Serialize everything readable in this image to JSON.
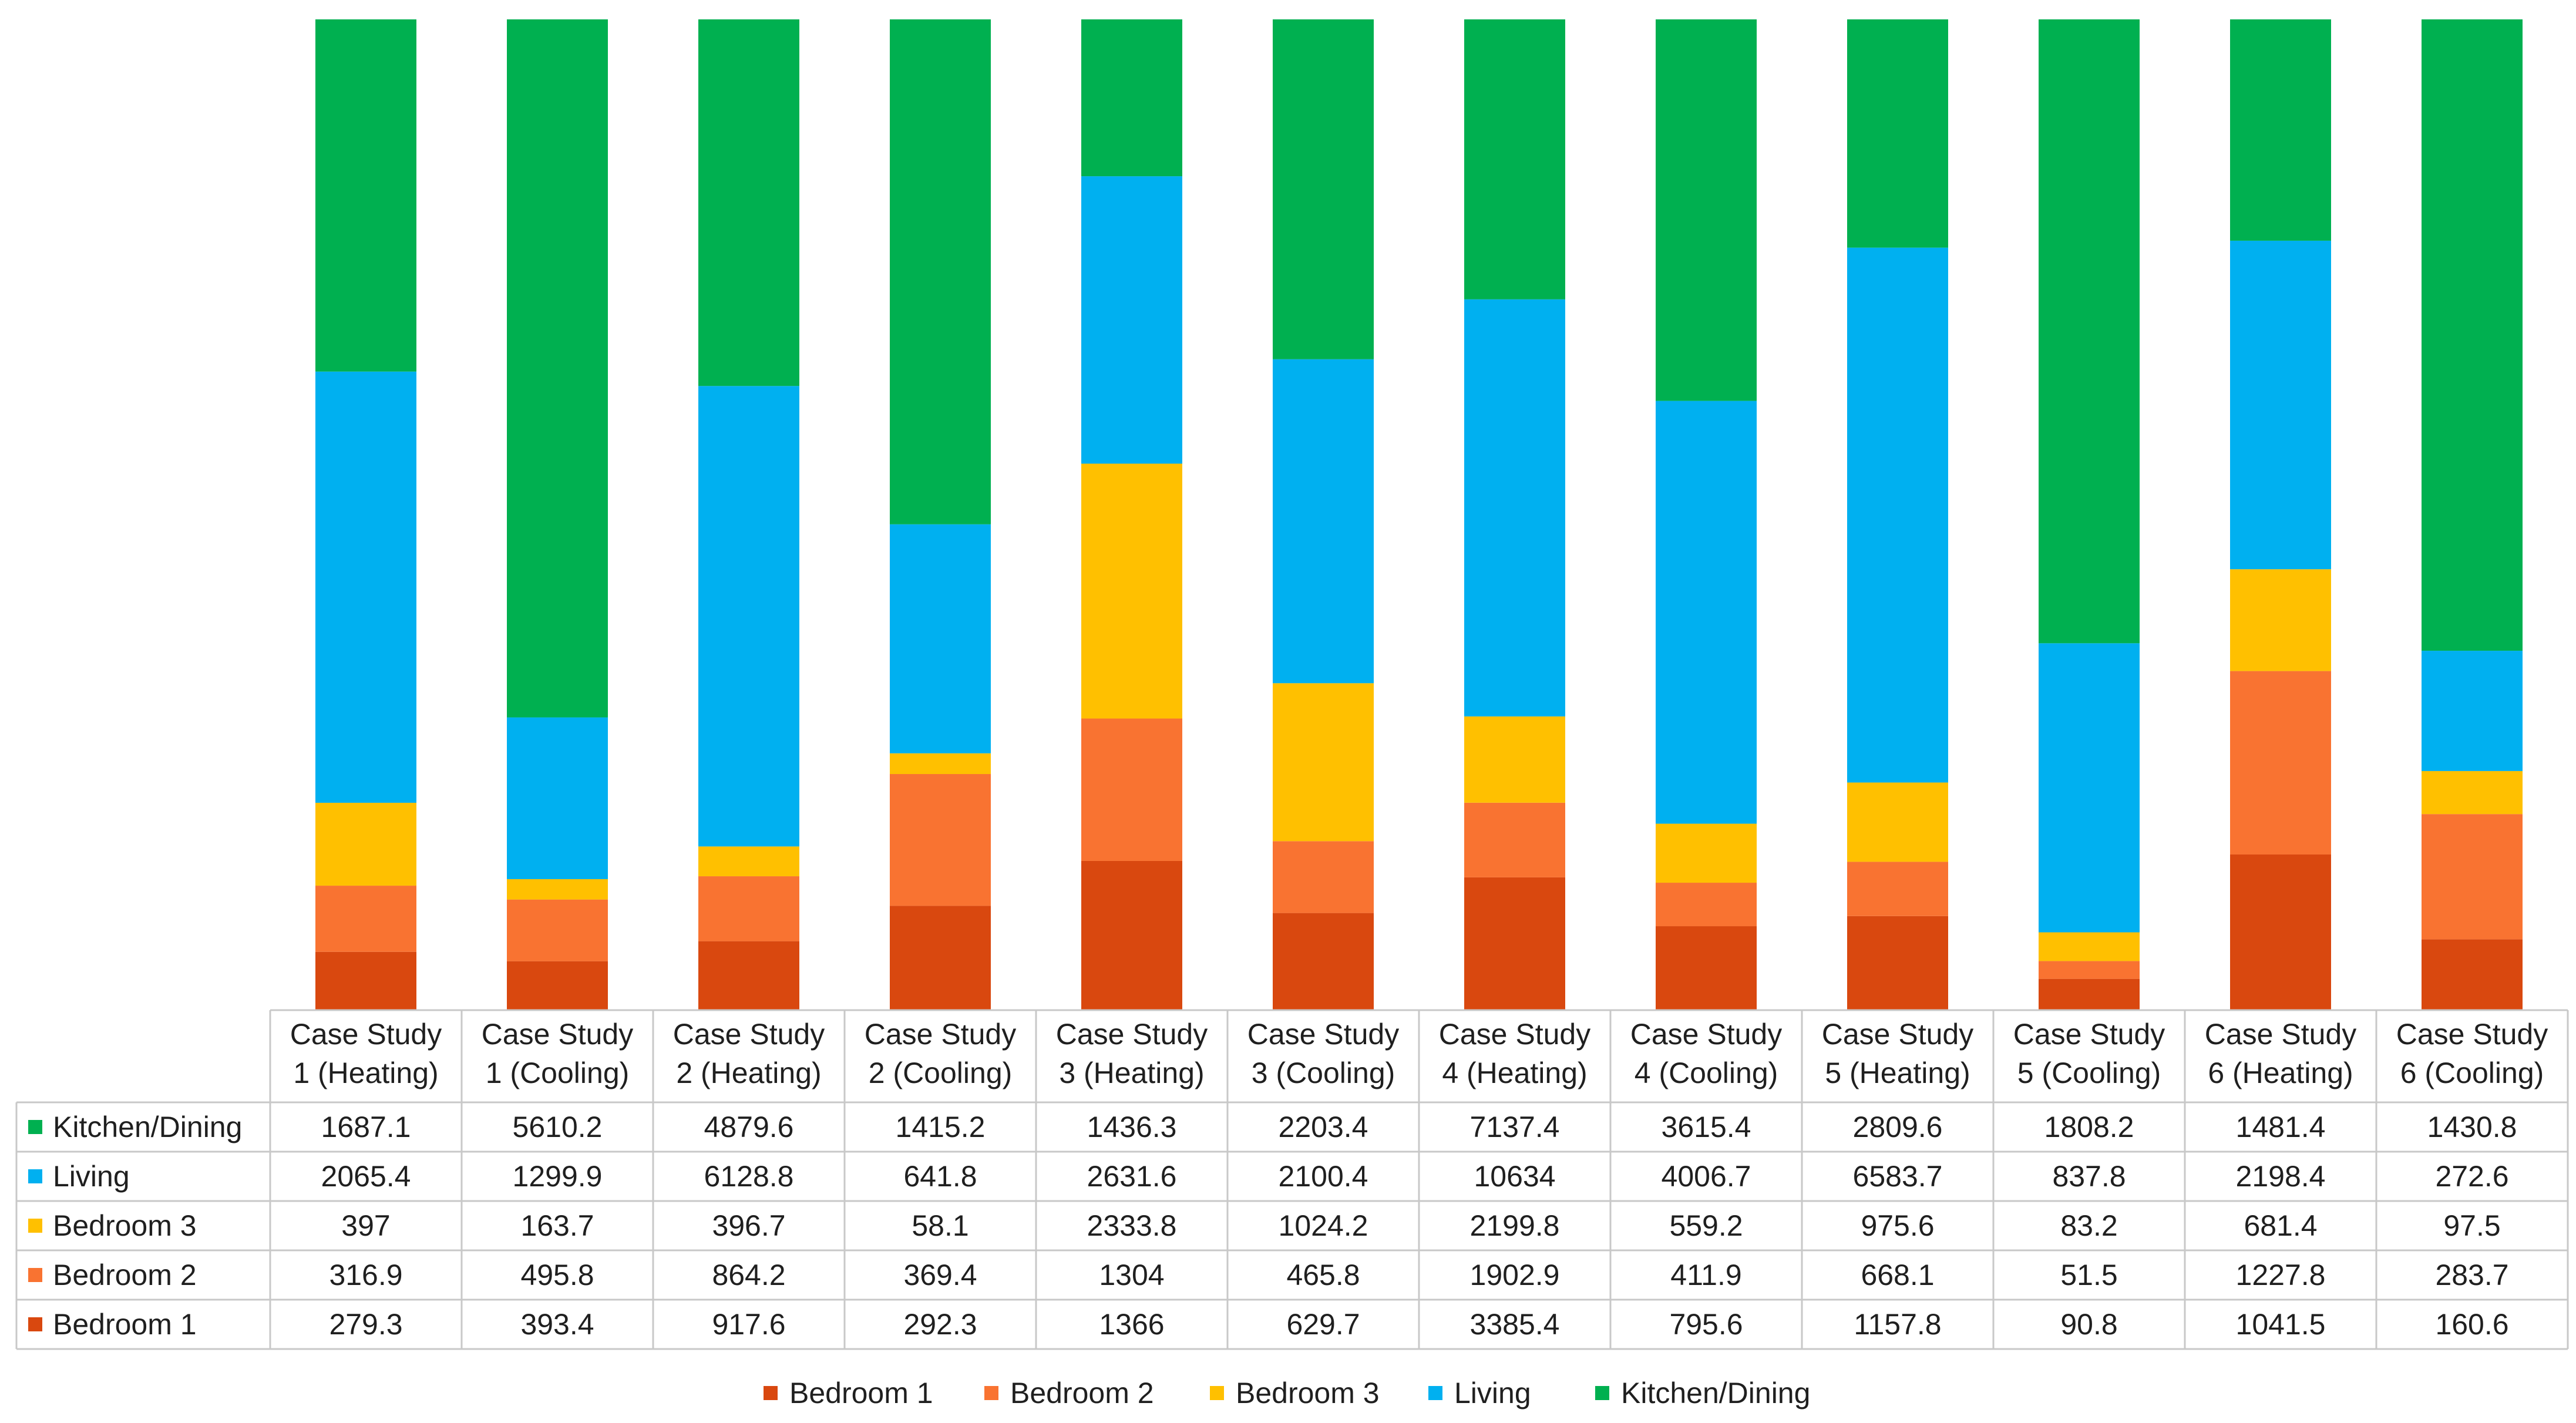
{
  "chart_data": {
    "type": "bar",
    "stacked": true,
    "normalized_100_percent": true,
    "title": "",
    "xlabel": "",
    "ylabel": "",
    "legend_position": "bottom",
    "grid": false,
    "has_data_table": true,
    "categories": [
      "Case Study 1 (Heating)",
      "Case Study 1 (Cooling)",
      "Case Study 2 (Heating)",
      "Case Study 2 (Cooling)",
      "Case Study 3 (Heating)",
      "Case Study 3 (Cooling)",
      "Case Study 4 (Heating)",
      "Case Study 4 (Cooling)",
      "Case Study 5 (Heating)",
      "Case Study 5 (Cooling)",
      "Case Study 6 (Heating)",
      "Case Study 6 (Cooling)"
    ],
    "category_lines": [
      [
        "Case Study",
        "1 (Heating)"
      ],
      [
        "Case Study",
        "1 (Cooling)"
      ],
      [
        "Case Study",
        "2 (Heating)"
      ],
      [
        "Case Study",
        "2 (Cooling)"
      ],
      [
        "Case Study",
        "3 (Heating)"
      ],
      [
        "Case Study",
        "3 (Cooling)"
      ],
      [
        "Case Study",
        "4 (Heating)"
      ],
      [
        "Case Study",
        "4 (Cooling)"
      ],
      [
        "Case Study",
        "5 (Heating)"
      ],
      [
        "Case Study",
        "5 (Cooling)"
      ],
      [
        "Case Study",
        "6 (Heating)"
      ],
      [
        "Case Study",
        "6 (Cooling)"
      ]
    ],
    "series": [
      {
        "name": "Bedroom 1",
        "color": "#D9480F",
        "values": [
          279.3,
          393.4,
          917.6,
          292.3,
          1366,
          629.7,
          3385.4,
          795.6,
          1157.8,
          90.8,
          1041.5,
          160.6
        ],
        "labels": [
          "279.3",
          "393.4",
          "917.6",
          "292.3",
          "1366",
          "629.7",
          "3385.4",
          "795.6",
          "1157.8",
          "90.8",
          "1041.5",
          "160.6"
        ]
      },
      {
        "name": "Bedroom 2",
        "color": "#F97331",
        "values": [
          316.9,
          495.8,
          864.2,
          369.4,
          1304,
          465.8,
          1902.9,
          411.9,
          668.1,
          51.5,
          1227.8,
          283.7
        ],
        "labels": [
          "316.9",
          "495.8",
          "864.2",
          "369.4",
          "1304",
          "465.8",
          "1902.9",
          "411.9",
          "668.1",
          "51.5",
          "1227.8",
          "283.7"
        ]
      },
      {
        "name": "Bedroom 3",
        "color": "#FFC000",
        "values": [
          397,
          163.7,
          396.7,
          58.1,
          2333.8,
          1024.2,
          2199.8,
          559.2,
          975.6,
          83.2,
          681.4,
          97.5
        ],
        "labels": [
          "397",
          "163.7",
          "396.7",
          "58.1",
          "2333.8",
          "1024.2",
          "2199.8",
          "559.2",
          "975.6",
          "83.2",
          "681.4",
          "97.5"
        ]
      },
      {
        "name": "Living",
        "color": "#00B0F0",
        "values": [
          2065.4,
          1299.9,
          6128.8,
          641.8,
          2631.6,
          2100.4,
          10634,
          4006.7,
          6583.7,
          837.8,
          2198.4,
          272.6
        ],
        "labels": [
          "2065.4",
          "1299.9",
          "6128.8",
          "641.8",
          "2631.6",
          "2100.4",
          "10634",
          "4006.7",
          "6583.7",
          "837.8",
          "2198.4",
          "272.6"
        ]
      },
      {
        "name": "Kitchen/Dining",
        "color": "#00B050",
        "values": [
          1687.1,
          5610.2,
          4879.6,
          1415.2,
          1436.3,
          2203.4,
          7137.4,
          3615.4,
          2809.6,
          1808.2,
          1481.4,
          1430.8
        ],
        "labels": [
          "1687.1",
          "5610.2",
          "4879.6",
          "1415.2",
          "1436.3",
          "2203.4",
          "7137.4",
          "3615.4",
          "2809.6",
          "1808.2",
          "1481.4",
          "1430.8"
        ]
      }
    ],
    "table_row_order": [
      "Kitchen/Dining",
      "Living",
      "Bedroom 3",
      "Bedroom 2",
      "Bedroom 1"
    ],
    "legend_order": [
      "Bedroom 1",
      "Bedroom 2",
      "Bedroom 3",
      "Living",
      "Kitchen/Dining"
    ]
  }
}
